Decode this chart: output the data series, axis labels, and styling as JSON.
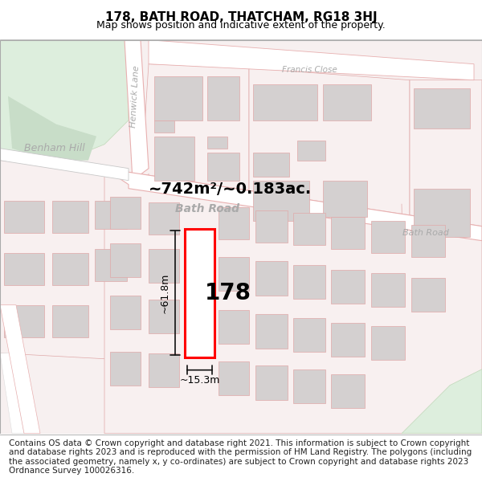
{
  "title": "178, BATH ROAD, THATCHAM, RG18 3HJ",
  "subtitle": "Map shows position and indicative extent of the property.",
  "footer": "Contains OS data © Crown copyright and database right 2021. This information is subject to Crown copyright and database rights 2023 and is reproduced with the permission of HM Land Registry. The polygons (including the associated geometry, namely x, y co-ordinates) are subject to Crown copyright and database rights 2023 Ordnance Survey 100026316.",
  "map_bg": "#f7f0f0",
  "road_fill": "#ffffff",
  "road_edge": "#e8b0b0",
  "road_edge2": "#c8c8c8",
  "building_fill": "#d4d0d0",
  "building_edge": "#e0a8a8",
  "plot_fill": "#f8f0f0",
  "plot_edge": "#e0a8a8",
  "green_fill": "#ddeedd",
  "green_dark": "#c8ddc8",
  "green_edge": "#c0d8b8",
  "highlight_color": "#ff0000",
  "highlight_fill": "#ffffff",
  "label_178": "178",
  "area_label": "~742m²/~0.183ac.",
  "dim_height": "~61.8m",
  "dim_width": "~15.3m",
  "street_bath_road": "Bath Road",
  "street_benham": "Benham Hill",
  "street_henwick": "Henwick Lane",
  "street_francis": "Francis Close",
  "street_bath_road2": "Bath Road",
  "title_fontsize": 11,
  "subtitle_fontsize": 9,
  "footer_fontsize": 7.5,
  "footer_text_color": "#222222",
  "road_label_color": "#aaaaaa",
  "street_label_color": "#888888",
  "dim_line_color": "#111111"
}
